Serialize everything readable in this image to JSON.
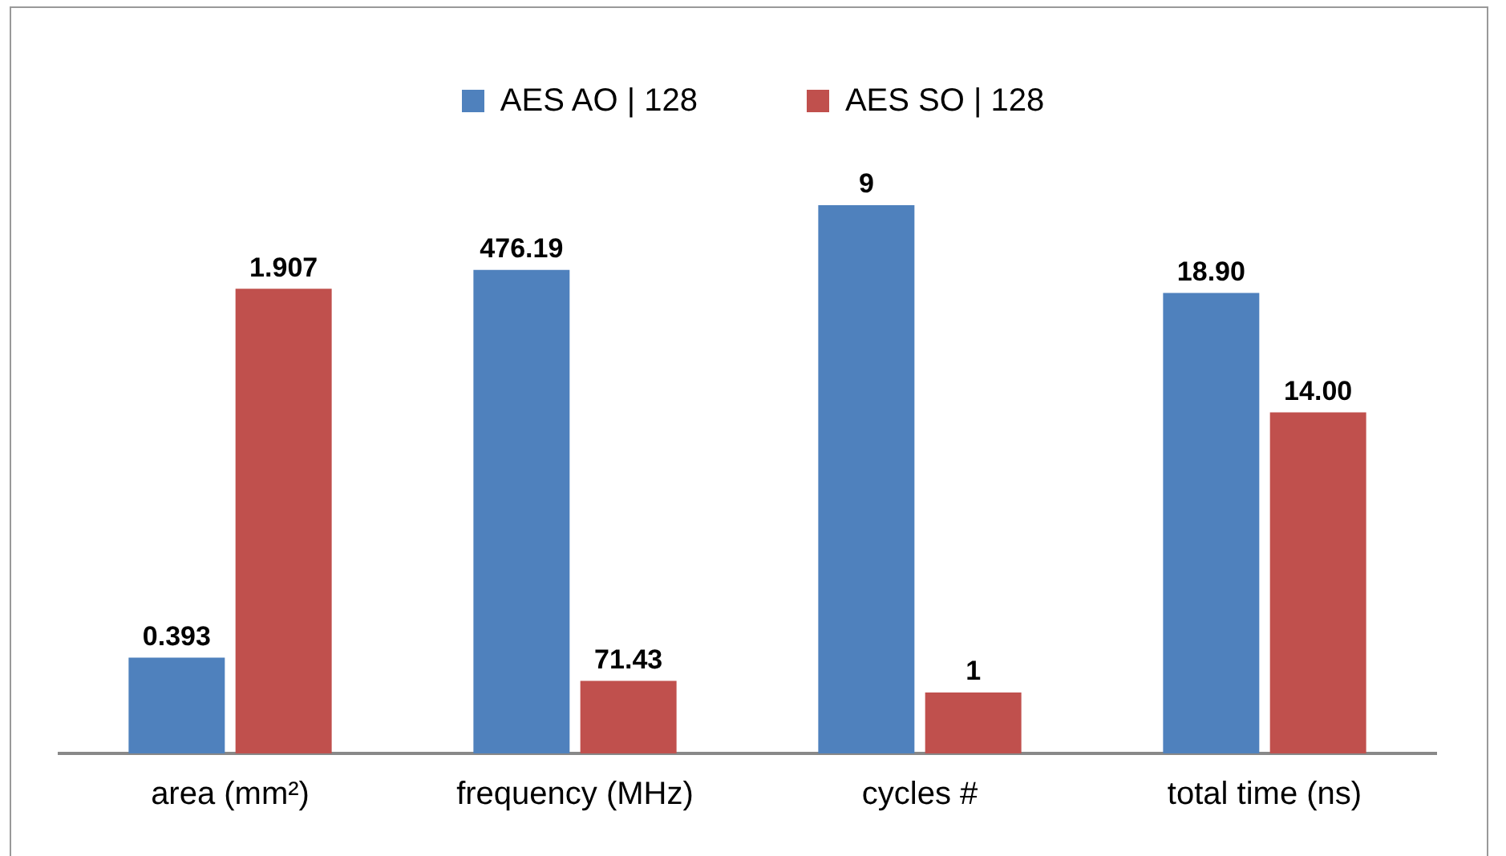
{
  "chart_data": [
    {
      "type": "bar",
      "categories": [
        "area (mm²)"
      ],
      "series": [
        {
          "name": "AES AO | 128",
          "color": "#4f81bd",
          "values": [
            0.393
          ]
        },
        {
          "name": "AES SO | 128",
          "color": "#c0504d",
          "values": [
            1.907
          ]
        }
      ],
      "tick_labels": "x",
      "data_labels": true,
      "legend": "top",
      "grid": false
    },
    {
      "type": "bar",
      "categories": [
        "frequency (MHz)"
      ],
      "series": [
        {
          "color": "#4f81bd",
          "values": [
            476.19
          ]
        },
        {
          "color": "#c0504d",
          "values": [
            71.43
          ]
        }
      ],
      "tick_labels": "x",
      "data_labels": true,
      "grid": false
    },
    {
      "type": "bar",
      "categories": [
        "cycles #"
      ],
      "series": [
        {
          "color": "#4f81bd",
          "values": [
            9
          ]
        },
        {
          "color": "#c0504d",
          "values": [
            1
          ]
        }
      ],
      "tick_labels": "x",
      "data_labels": true,
      "grid": false
    },
    {
      "type": "bar",
      "categories": [
        "total time (ns)"
      ],
      "series": [
        {
          "color": "#4f81bd",
          "values": [
            18.9
          ],
          "value_labels": [
            "18.90"
          ]
        },
        {
          "color": "#c0504d",
          "values": [
            14
          ],
          "value_labels": [
            "14.00"
          ]
        }
      ],
      "tick_labels": "x",
      "grid": false
    }
  ]
}
